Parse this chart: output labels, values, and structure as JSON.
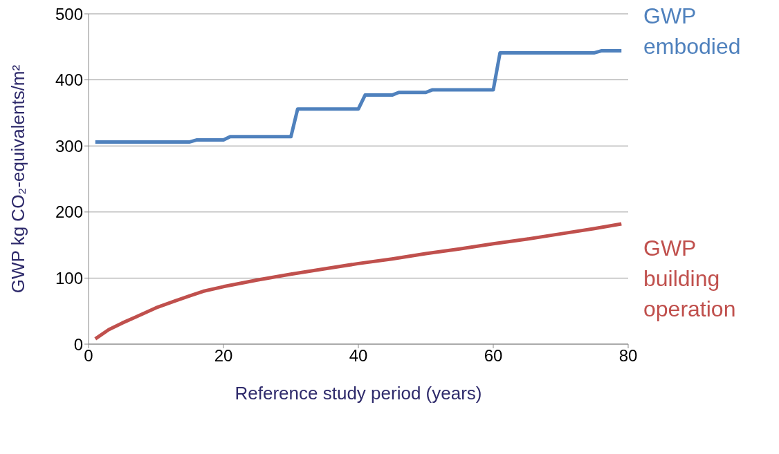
{
  "chart_data": {
    "type": "line",
    "xlabel": "Reference study period (years)",
    "ylabel": "GWP kg CO₂-equivalents/m²",
    "xlim": [
      0,
      80
    ],
    "xticks": [
      0,
      20,
      40,
      60,
      80
    ],
    "ylim": [
      0,
      500
    ],
    "yticks": [
      0,
      100,
      200,
      300,
      400,
      500
    ],
    "grid": "y",
    "legend": false,
    "marker": "none",
    "line_style": "solid",
    "series": [
      {
        "name": "GWP embodied",
        "color": "#4f81bd",
        "x": [
          1,
          15,
          16,
          20,
          21,
          30,
          31,
          40,
          41,
          45,
          46,
          50,
          51,
          60,
          61,
          75,
          76,
          79
        ],
        "values": [
          306,
          306,
          309,
          309,
          314,
          314,
          356,
          356,
          377,
          377,
          381,
          381,
          385,
          385,
          441,
          441,
          444,
          444
        ]
      },
      {
        "name": "GWP building operation",
        "color": "#c0504d",
        "x": [
          1,
          3,
          5,
          7,
          10,
          13,
          15,
          17,
          20,
          25,
          30,
          35,
          40,
          45,
          50,
          55,
          60,
          65,
          70,
          75,
          79
        ],
        "values": [
          8,
          22,
          32,
          41,
          55,
          66,
          73,
          80,
          87,
          97,
          106,
          114,
          122,
          129,
          137,
          144,
          152,
          159,
          167,
          175,
          182
        ]
      }
    ]
  }
}
